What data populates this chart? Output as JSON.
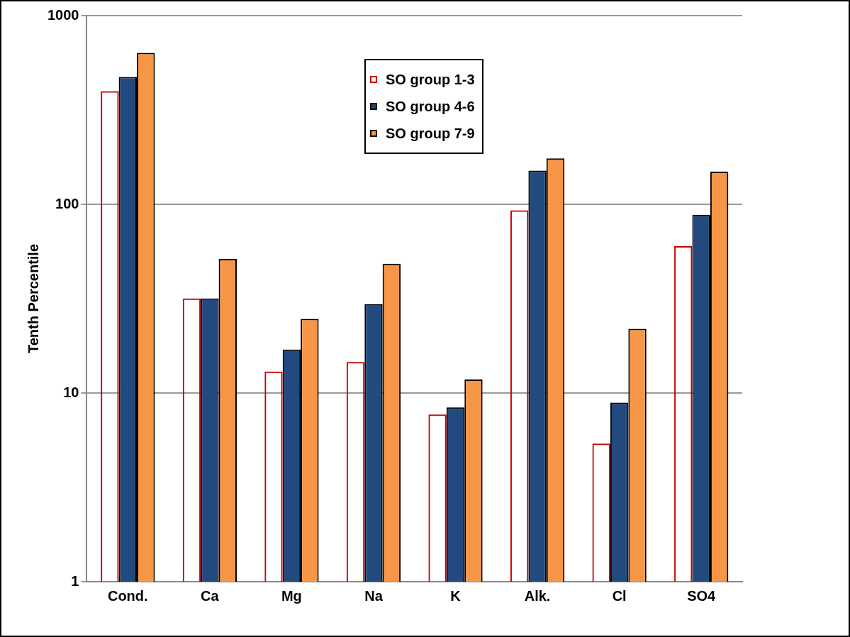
{
  "chart_data": {
    "type": "bar",
    "ylabel": "Tenth Percentile",
    "categories": [
      "Cond.",
      "Ca",
      "Mg",
      "Na",
      "K",
      "Alk.",
      "Cl",
      "SO4"
    ],
    "series": [
      {
        "name": "SO group 1-3",
        "color": "#cc0000",
        "values": [
          398,
          31.7,
          13,
          14.6,
          7.7,
          93,
          5.4,
          60
        ]
      },
      {
        "name": "SO group 4-6",
        "color": "#234a7e",
        "values": [
          473,
          31.7,
          17,
          29.6,
          8.4,
          151,
          8.9,
          88
        ]
      },
      {
        "name": "SO group 7-9",
        "color": "#f79646",
        "values": [
          635,
          51.4,
          24.7,
          48.4,
          11.8,
          175,
          21.9,
          149
        ]
      }
    ],
    "log": "y",
    "ylim": [
      1,
      1000
    ],
    "yticks": [
      1,
      10,
      100,
      1000
    ],
    "grid": "y",
    "legend": "top"
  }
}
